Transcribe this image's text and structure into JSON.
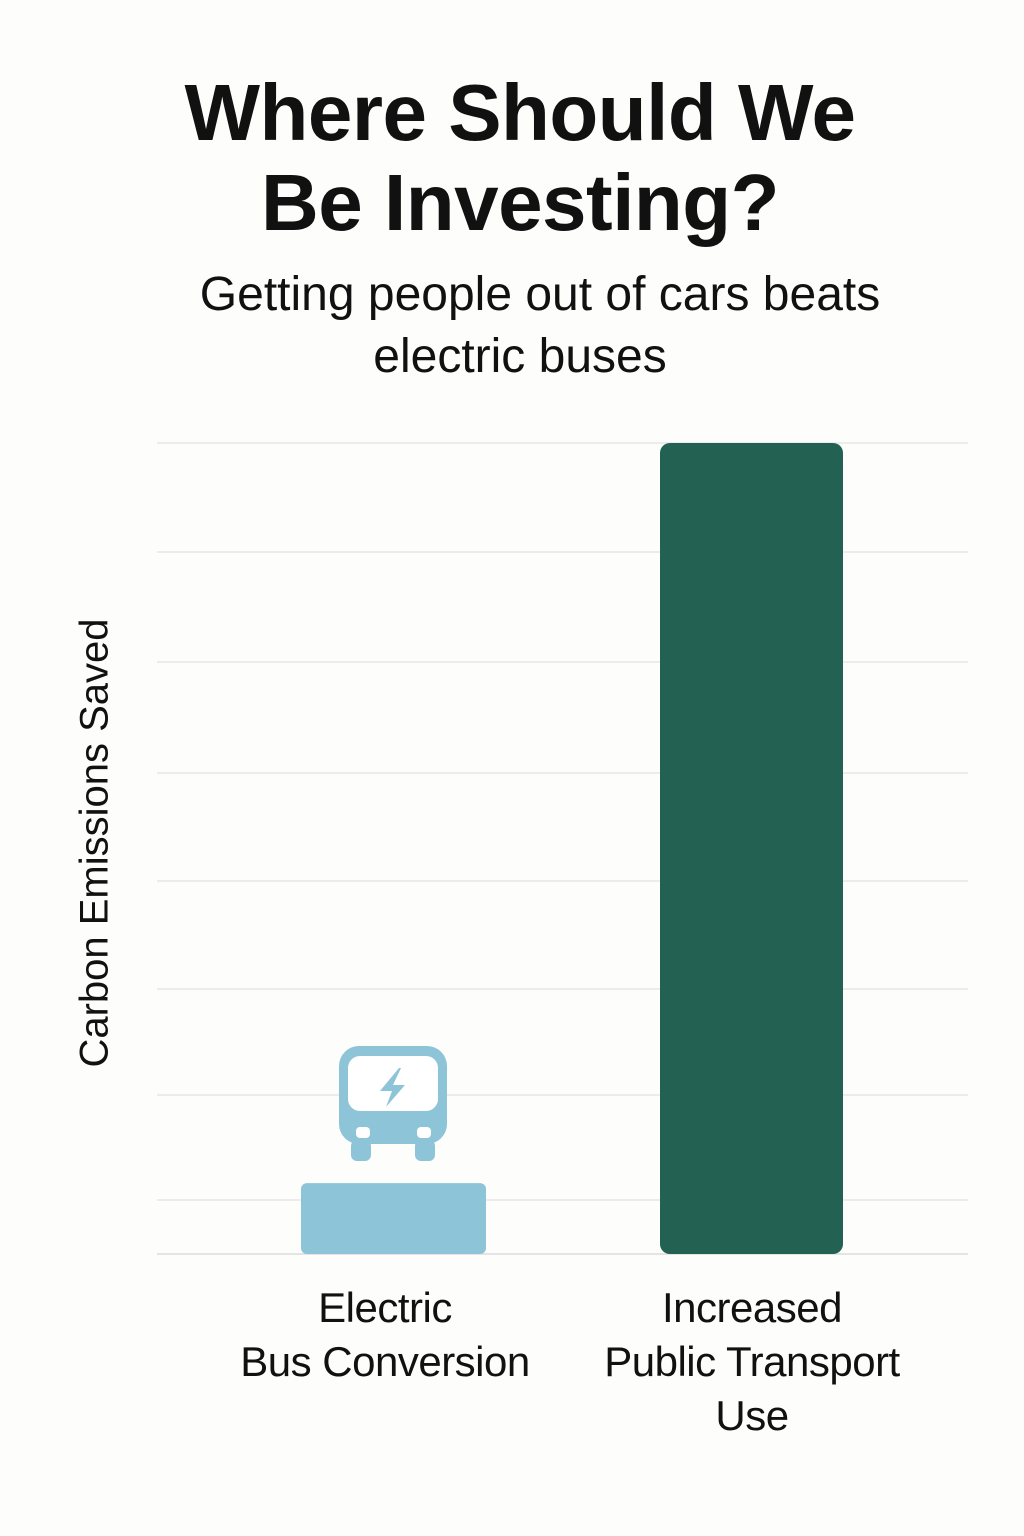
{
  "chart_data": {
    "type": "bar",
    "title": [
      "Where Should We",
      "Be Investing?"
    ],
    "subtitle": [
      "Getting people out of cars beats",
      "electric buses"
    ],
    "ylabel": "Carbon Emissions Saved",
    "xlabel": "",
    "categories": [
      [
        "Electric",
        "Bus Conversion"
      ],
      [
        "Increased",
        "Public Transport",
        "Use"
      ]
    ],
    "values": [
      0.9,
      10.3
    ],
    "ylim": [
      0,
      10.3
    ],
    "grid": true,
    "bar_colors": [
      "#8ec4d8",
      "#236252"
    ],
    "icons": [
      "electric-bus-icon"
    ]
  }
}
